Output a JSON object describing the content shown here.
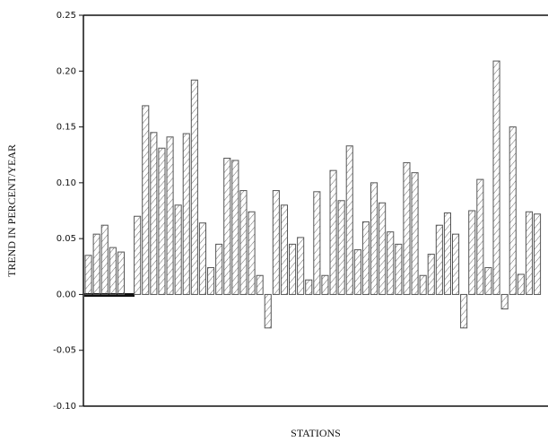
{
  "chart_data": {
    "type": "bar",
    "x_label": "STATIONS",
    "y_label": "TREND IN PERCENT/YEAR",
    "categories": [
      null,
      null,
      null,
      null,
      null,
      null,
      null,
      null,
      null,
      null,
      null,
      null,
      null,
      null,
      null,
      null,
      null,
      null,
      null,
      null,
      null,
      null,
      null,
      null,
      null,
      null,
      null,
      null,
      null,
      null,
      null,
      null,
      null,
      null,
      null,
      null,
      null,
      null,
      null,
      null,
      null,
      null,
      null,
      null,
      null,
      null,
      null,
      null,
      null,
      null,
      null,
      null,
      null,
      null,
      null,
      null
    ],
    "values": [
      0.035,
      0.054,
      0.062,
      0.042,
      0.038,
      null,
      0.07,
      0.169,
      0.145,
      0.131,
      0.141,
      0.08,
      0.144,
      0.192,
      0.064,
      0.024,
      0.045,
      0.122,
      0.12,
      0.093,
      0.074,
      0.017,
      -0.03,
      0.093,
      0.08,
      0.045,
      0.051,
      0.013,
      0.092,
      0.017,
      0.111,
      0.084,
      0.133,
      0.04,
      0.065,
      0.1,
      0.082,
      0.056,
      0.045,
      0.118,
      0.109,
      0.017,
      0.036,
      0.062,
      0.073,
      0.054,
      -0.03,
      0.075,
      0.103,
      0.024,
      0.209,
      -0.013,
      0.15,
      0.018,
      0.074,
      0.072
    ],
    "color": "#555555",
    "ylim": [
      -0.1,
      0.25
    ],
    "yticks": [
      {
        "value": -0.1,
        "label": "-0.10"
      },
      {
        "value": -0.05,
        "label": "-0.05"
      },
      {
        "value": 0.0,
        "label": "0.00"
      },
      {
        "value": 0.05,
        "label": "0.05"
      },
      {
        "value": 0.1,
        "label": "0.10"
      },
      {
        "value": 0.15,
        "label": "0.15"
      },
      {
        "value": 0.2,
        "label": "0.20"
      },
      {
        "value": 0.25,
        "label": "0.25"
      }
    ],
    "grid": false
  }
}
